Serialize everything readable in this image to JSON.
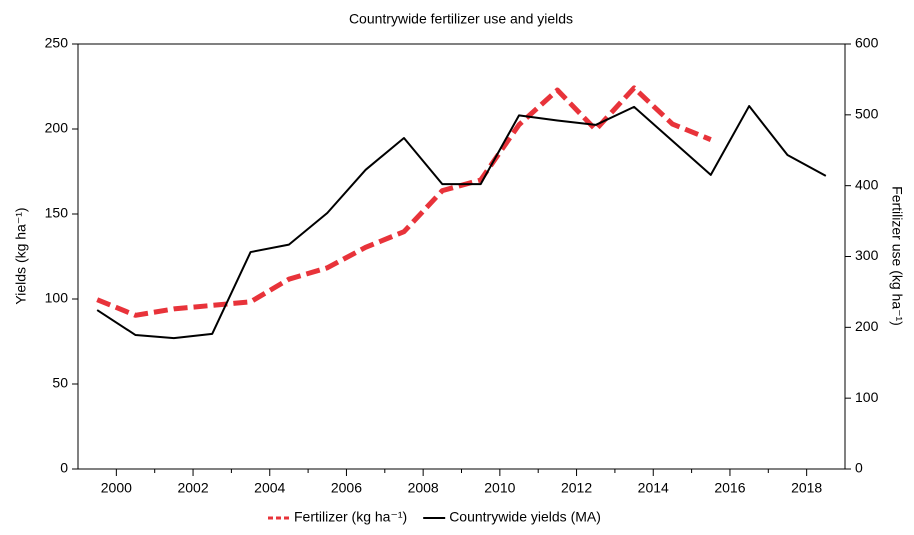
{
  "chart_data": {
    "type": "line",
    "title": "Countrywide fertilizer use and yields",
    "x": [
      1999.5,
      2000.5,
      2001.5,
      2002.5,
      2003.5,
      2004.5,
      2005.5,
      2006.5,
      2007.5,
      2008.5,
      2009.5,
      2010.5,
      2011.5,
      2012.5,
      2013.5,
      2014.5,
      2015.5,
      2016.5,
      2017.5,
      2018.5
    ],
    "xlim": [
      1999,
      2019
    ],
    "xticks": [
      2000,
      2002,
      2004,
      2006,
      2008,
      2010,
      2012,
      2014,
      2016,
      2018
    ],
    "ylim": [
      0,
      250
    ],
    "yticks": [
      0,
      50,
      100,
      150,
      200,
      250
    ],
    "y2lim": [
      0,
      600
    ],
    "y2ticks": [
      0,
      100,
      200,
      300,
      400,
      500,
      600
    ],
    "ylabel": "Yields (kg ha⁻¹)",
    "y2label": "Fertilizer use (kg ha⁻¹)",
    "series": [
      {
        "name": "Fertilizer (kg ha⁻¹)",
        "color": "#e8333a",
        "axis": "y2",
        "dashed": true,
        "values": [
          239,
          217,
          226,
          231,
          236,
          268,
          284,
          313,
          335,
          393,
          408,
          486,
          535,
          479,
          538,
          487,
          465,
          null,
          null,
          null
        ]
      },
      {
        "name": "Countrywide yields (MA)",
        "color": "#000000",
        "values": [
          93.5,
          78.8,
          77,
          79.5,
          127.6,
          132,
          150.6,
          176,
          194.7,
          167.6,
          167.6,
          208,
          205,
          202.4,
          213,
          193,
          173,
          213.5,
          184.7,
          172.4
        ]
      }
    ]
  }
}
